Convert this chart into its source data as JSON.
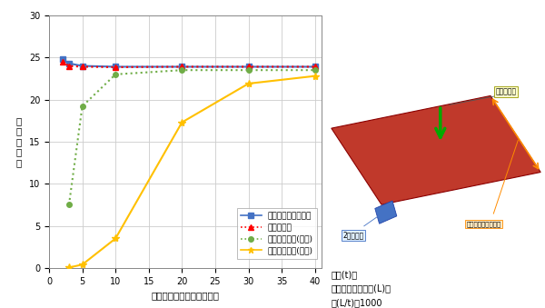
{
  "xlabel": "エッジあたりの要素分割数",
  "ylabel": "最\n大\n変\n位\n量",
  "xlim": [
    0,
    41
  ],
  "ylim": [
    0,
    30
  ],
  "xticks": [
    0,
    5,
    10,
    15,
    20,
    25,
    30,
    35,
    40
  ],
  "yticks": [
    0,
    5,
    10,
    15,
    20,
    25,
    30
  ],
  "series": {
    "solid_shell": {
      "label": "ソリッドシェル要素",
      "x": [
        2,
        3,
        5,
        10,
        20,
        30,
        40
      ],
      "y": [
        24.8,
        24.3,
        24.0,
        23.9,
        23.9,
        23.9,
        23.9
      ],
      "color": "#4472C4",
      "linestyle": "-",
      "marker": "s",
      "linewidth": 1.5,
      "markersize": 4
    },
    "shell": {
      "label": "シェル要素",
      "x": [
        2,
        3,
        5,
        10,
        20,
        30,
        40
      ],
      "y": [
        24.5,
        24.0,
        23.9,
        23.85,
        23.9,
        23.9,
        23.9
      ],
      "color": "#FF0000",
      "linestyle": ":",
      "marker": "^",
      "linewidth": 1.5,
      "markersize": 4
    },
    "solid_high": {
      "label": "ソリッド要素(高次)",
      "x": [
        3,
        5,
        10,
        20,
        30,
        40
      ],
      "y": [
        7.5,
        19.2,
        23.0,
        23.5,
        23.5,
        23.5
      ],
      "color": "#70AD47",
      "linestyle": ":",
      "marker": "o",
      "linewidth": 1.5,
      "markersize": 4
    },
    "solid_low": {
      "label": "ソリッド要素(低次)",
      "x": [
        3,
        5,
        10,
        20,
        30,
        40
      ],
      "y": [
        0.05,
        0.4,
        3.5,
        17.3,
        21.9,
        22.8
      ],
      "color": "#FFC000",
      "linestyle": "-",
      "marker": "*",
      "linewidth": 1.5,
      "markersize": 6
    }
  },
  "background_color": "#FFFFFF",
  "grid_color": "#CCCCCC",
  "image_annotation": {
    "text_line1": "厚さ(t)と",
    "text_line2": "モデル一辺の長さ(L)の",
    "text_line3": "比(L/t)：1000"
  }
}
